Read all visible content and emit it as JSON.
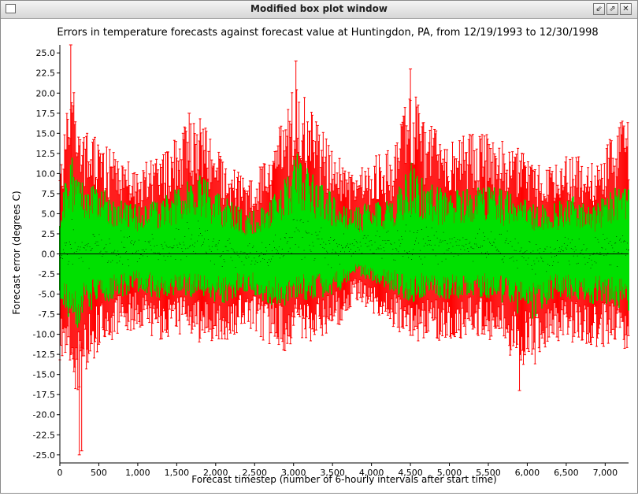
{
  "window": {
    "title": "Modified box plot window",
    "buttons": {
      "minimize_glyph": "⇙",
      "maximize_glyph": "⇗",
      "close_glyph": "✕"
    }
  },
  "colors": {
    "whisker": "#ff0000",
    "box": "#00e000",
    "median": "#000000",
    "zero_line": "#000000",
    "axis": "#000000",
    "plot_background": "#ffffff"
  },
  "chart_data": {
    "type": "boxplot",
    "title": "Errors in temperature forecasts against forecast value at Huntingdon, PA, from 12/19/1993 to 12/30/1998",
    "xlabel": "Forecast timestep (number of 6-hourly intervals after start time)",
    "ylabel": "Forecast error (degrees C)",
    "xlim": [
      0,
      7300
    ],
    "ylim": [
      -26.0,
      26.0
    ],
    "x_ticks": [
      0,
      500,
      1000,
      1500,
      2000,
      2500,
      3000,
      3500,
      4000,
      4500,
      5000,
      5500,
      6000,
      6500,
      7000
    ],
    "x_tick_labels": [
      "0",
      "500",
      "1,000",
      "1,500",
      "2,000",
      "2,500",
      "3,000",
      "3,500",
      "4,000",
      "4,500",
      "5,000",
      "5,500",
      "6,000",
      "6,500",
      "7,000"
    ],
    "y_ticks": [
      25.0,
      22.5,
      20.0,
      17.5,
      15.0,
      12.5,
      10.0,
      7.5,
      5.0,
      2.5,
      0.0,
      -2.5,
      -5.0,
      -7.5,
      -10.0,
      -12.5,
      -15.0,
      -17.5,
      -20.0,
      -22.5,
      -25.0
    ],
    "y_tick_labels": [
      "25.0",
      "22.5",
      "20.0",
      "17.5",
      "15.0",
      "12.5",
      "10.0",
      "7.5",
      "5.0",
      "2.5",
      "0.0",
      "-2.5",
      "-5.0",
      "-7.5",
      "-10.0",
      "-12.5",
      "-15.0",
      "-17.5",
      "-20.0",
      "-22.5",
      "-25.0"
    ],
    "reference_line_y": 0.0,
    "grid": false,
    "legend": "none",
    "envelope": {
      "x": [
        0,
        150,
        250,
        300,
        500,
        700,
        1000,
        1300,
        1600,
        1800,
        2100,
        2400,
        2700,
        2900,
        3050,
        3300,
        3600,
        3800,
        4000,
        4300,
        4500,
        4700,
        5000,
        5300,
        5600,
        5900,
        6100,
        6300,
        6600,
        6900,
        7100,
        7300
      ],
      "whisker_high": [
        10.0,
        22.0,
        16.0,
        14.0,
        13.0,
        11.5,
        10.0,
        11.0,
        15.0,
        15.5,
        11.0,
        8.5,
        11.0,
        16.5,
        20.0,
        15.0,
        11.0,
        9.0,
        11.0,
        12.0,
        19.5,
        15.0,
        13.0,
        14.0,
        13.5,
        12.0,
        10.0,
        10.0,
        11.5,
        10.0,
        14.0,
        16.0
      ],
      "box_high": [
        5.5,
        12.0,
        9.0,
        8.5,
        8.0,
        7.0,
        6.0,
        6.5,
        9.0,
        9.5,
        7.0,
        5.0,
        6.5,
        10.0,
        12.0,
        9.0,
        6.5,
        5.5,
        6.5,
        7.0,
        11.0,
        8.5,
        7.5,
        8.0,
        8.0,
        7.0,
        6.0,
        6.0,
        7.0,
        6.0,
        8.0,
        9.5
      ],
      "box_low": [
        -5.5,
        -8.5,
        -10.0,
        -8.0,
        -6.0,
        -5.5,
        -4.5,
        -5.5,
        -5.0,
        -5.5,
        -6.0,
        -4.5,
        -6.0,
        -6.5,
        -5.5,
        -5.5,
        -4.5,
        -2.5,
        -3.5,
        -4.5,
        -6.0,
        -5.0,
        -5.5,
        -5.0,
        -5.5,
        -7.5,
        -8.0,
        -5.5,
        -5.5,
        -6.0,
        -6.0,
        -7.0
      ],
      "whisker_low": [
        -12.0,
        -13.5,
        -18.0,
        -14.5,
        -11.0,
        -9.5,
        -8.5,
        -10.0,
        -9.5,
        -10.0,
        -10.5,
        -8.5,
        -10.5,
        -11.0,
        -10.0,
        -10.0,
        -8.0,
        -5.0,
        -7.0,
        -8.5,
        -10.5,
        -9.5,
        -10.0,
        -9.5,
        -10.0,
        -12.5,
        -13.0,
        -10.0,
        -10.0,
        -10.5,
        -10.5,
        -11.5
      ]
    },
    "extremes": {
      "max_point": [
        140,
        26.0
      ],
      "min_point": [
        250,
        -25.0
      ],
      "notable_high_peaks": [
        [
          3030,
          24.0
        ],
        [
          4500,
          23.0
        ],
        [
          1660,
          17.5
        ]
      ],
      "notable_low_peaks": [
        [
          5900,
          -17.0
        ],
        [
          280,
          -24.5
        ]
      ]
    },
    "box_count_approx": 7300
  }
}
